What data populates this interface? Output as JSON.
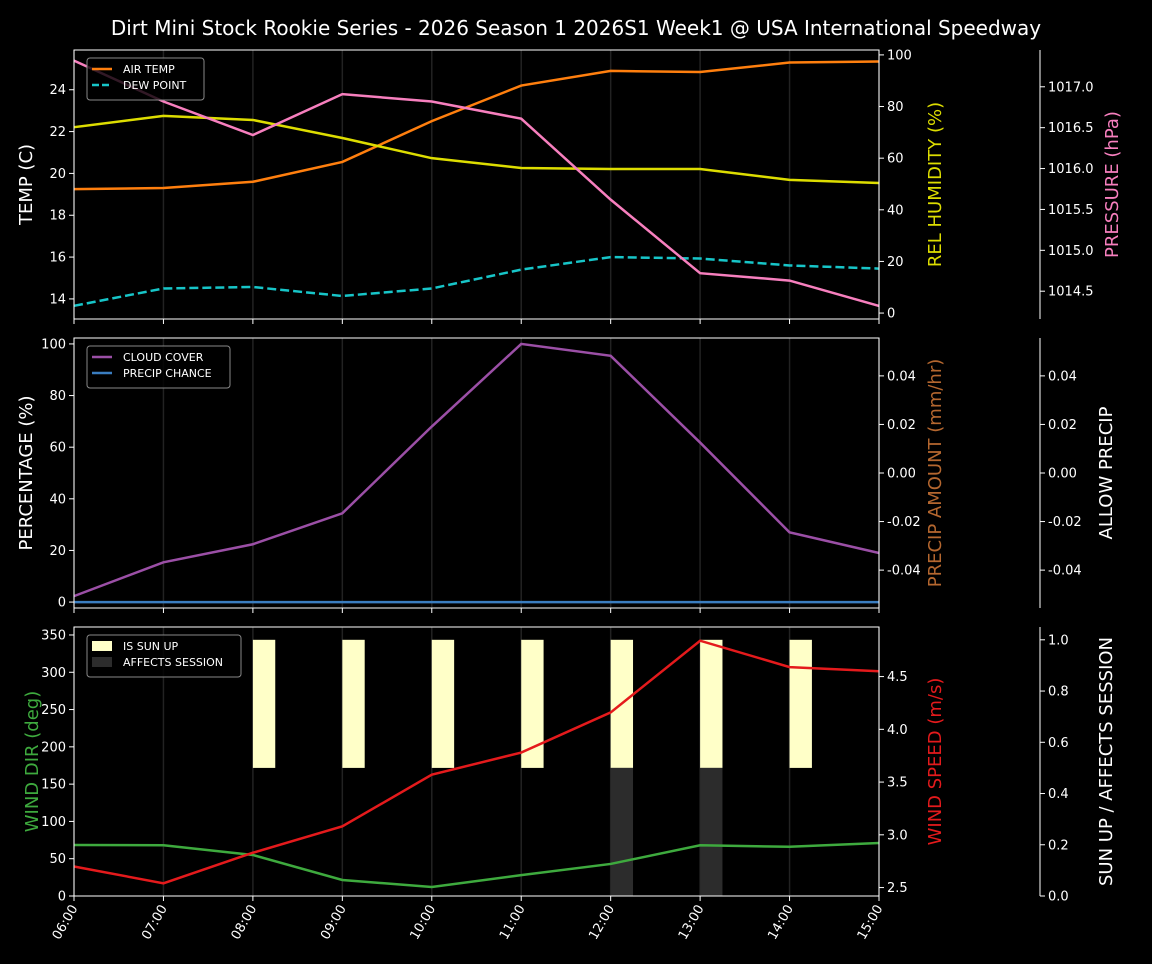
{
  "title": "Dirt Mini Stock Rookie Series - 2026 Season 1 2026S1 Week1 @ USA International Speedway",
  "chart_data": [
    {
      "type": "line",
      "x": [
        "06:00",
        "07:00",
        "08:00",
        "09:00",
        "10:00",
        "11:00",
        "12:00",
        "13:00",
        "14:00",
        "15:00"
      ],
      "legend": "top-left",
      "grid": "vertical",
      "axes": {
        "left": {
          "label": "TEMP (C)",
          "range": [
            13.04,
            25.9
          ],
          "ticks": [
            14,
            16,
            18,
            20,
            22,
            24
          ],
          "color": "#ffffff"
        },
        "right": {
          "label": "REL HUMIDITY (%)",
          "range": [
            -2.3,
            101.9
          ],
          "ticks": [
            0,
            20,
            40,
            60,
            80,
            100
          ],
          "color": "#dddd00"
        },
        "right2": {
          "label": "PRESSURE (hPa)",
          "range": [
            1014.16,
            1017.45
          ],
          "ticks": [
            1014.5,
            1015.0,
            1015.5,
            1016.0,
            1016.5,
            1017.0
          ],
          "color": "#f77fbe",
          "decimals": 1
        }
      },
      "series": [
        {
          "name": "AIR TEMP",
          "axis": "left",
          "color": "#ff7f0e",
          "dash": false,
          "legend": true,
          "values": [
            19.25,
            19.3,
            19.6,
            20.55,
            22.5,
            24.2,
            24.9,
            24.85,
            25.3,
            25.35
          ]
        },
        {
          "name": "DEW POINT",
          "axis": "left",
          "color": "#17c5c8",
          "dash": true,
          "legend": true,
          "values": [
            13.67,
            14.5,
            14.57,
            14.14,
            14.5,
            15.4,
            16.0,
            15.93,
            15.6,
            15.45
          ]
        },
        {
          "axis": "right",
          "color": "#dddd00",
          "dash": false,
          "legend": false,
          "values": [
            72,
            76.4,
            74.8,
            67.8,
            60,
            56.2,
            55.8,
            55.8,
            51.6,
            50.4
          ]
        },
        {
          "axis": "right2",
          "color": "#f77fbe",
          "dash": false,
          "legend": false,
          "values": [
            1017.32,
            1016.82,
            1016.41,
            1016.91,
            1016.82,
            1016.61,
            1015.62,
            1014.72,
            1014.63,
            1014.32
          ]
        }
      ]
    },
    {
      "type": "line",
      "x": [
        "06:00",
        "07:00",
        "08:00",
        "09:00",
        "10:00",
        "11:00",
        "12:00",
        "13:00",
        "14:00",
        "15:00"
      ],
      "legend": "top-left",
      "grid": "vertical",
      "axes": {
        "left": {
          "label": "PERCENTAGE (%)",
          "range": [
            -2.3,
            102.3
          ],
          "ticks": [
            0,
            20,
            40,
            60,
            80,
            100
          ],
          "color": "#ffffff"
        },
        "right": {
          "label": "PRECIP AMOUNT (mm/hr)",
          "range": [
            -0.0556,
            0.0556
          ],
          "ticks": [
            -0.04,
            -0.02,
            0.0,
            0.02,
            0.04
          ],
          "color": "#b5672f",
          "decimals": 2
        },
        "right2": {
          "label": "ALLOW PRECIP",
          "range": [
            -0.0556,
            0.0556
          ],
          "ticks": [
            -0.04,
            -0.02,
            0.0,
            0.02,
            0.04
          ],
          "color": "#ffffff",
          "decimals": 2
        }
      },
      "series": [
        {
          "name": "CLOUD COVER",
          "axis": "left",
          "color": "#9b4fa6",
          "dash": false,
          "legend": true,
          "values": [
            2.3,
            15.4,
            22.4,
            34.4,
            68,
            100,
            95.4,
            61.8,
            27,
            19
          ]
        },
        {
          "name": "PRECIP CHANCE",
          "axis": "left",
          "color": "#3a7dc0",
          "dash": false,
          "legend": true,
          "values": [
            0,
            0,
            0,
            0,
            0,
            0,
            0,
            0,
            0,
            0
          ]
        }
      ]
    },
    {
      "type": "line",
      "x": [
        "06:00",
        "07:00",
        "08:00",
        "09:00",
        "10:00",
        "11:00",
        "12:00",
        "13:00",
        "14:00",
        "15:00"
      ],
      "legend": "top-left",
      "grid": "vertical",
      "axes": {
        "left": {
          "label": "WIND DIR (deg)",
          "range": [
            0,
            360.7
          ],
          "ticks": [
            0,
            50,
            100,
            150,
            200,
            250,
            300,
            350
          ],
          "color": "#3eaa3e"
        },
        "right": {
          "label": "WIND SPEED (m/s)",
          "range": [
            2.42,
            4.97
          ],
          "ticks": [
            2.5,
            3.0,
            3.5,
            4.0,
            4.5
          ],
          "color": "#e41a1c",
          "decimals": 1
        },
        "right2": {
          "label": "SUN UP / AFFECTS SESSION",
          "range": [
            0,
            1.05
          ],
          "ticks": [
            0.0,
            0.2,
            0.4,
            0.6,
            0.8,
            1.0
          ],
          "color": "#ffffff",
          "decimals": 1
        }
      },
      "bars": [
        {
          "name": "IS SUN UP",
          "color": "#ffffc8",
          "base": 0.5,
          "values": [
            0,
            0,
            0.5,
            0.5,
            0.5,
            0.5,
            0.5,
            0.5,
            0.5,
            0
          ]
        },
        {
          "name": "AFFECTS SESSION",
          "color": "#2c2c2c",
          "base": 0,
          "values": [
            0,
            0,
            0,
            0,
            0,
            0,
            0.5,
            0.5,
            0,
            0
          ]
        }
      ],
      "series": [
        {
          "axis": "left",
          "color": "#3eaa3e",
          "dash": false,
          "legend": false,
          "values": [
            68.4,
            68,
            55,
            21.5,
            12,
            28,
            43,
            68,
            66,
            71
          ]
        },
        {
          "axis": "right",
          "color": "#e41a1c",
          "dash": false,
          "legend": false,
          "values": [
            2.7,
            2.54,
            2.83,
            3.08,
            3.57,
            3.78,
            4.16,
            4.84,
            4.59,
            4.55
          ]
        }
      ]
    }
  ]
}
